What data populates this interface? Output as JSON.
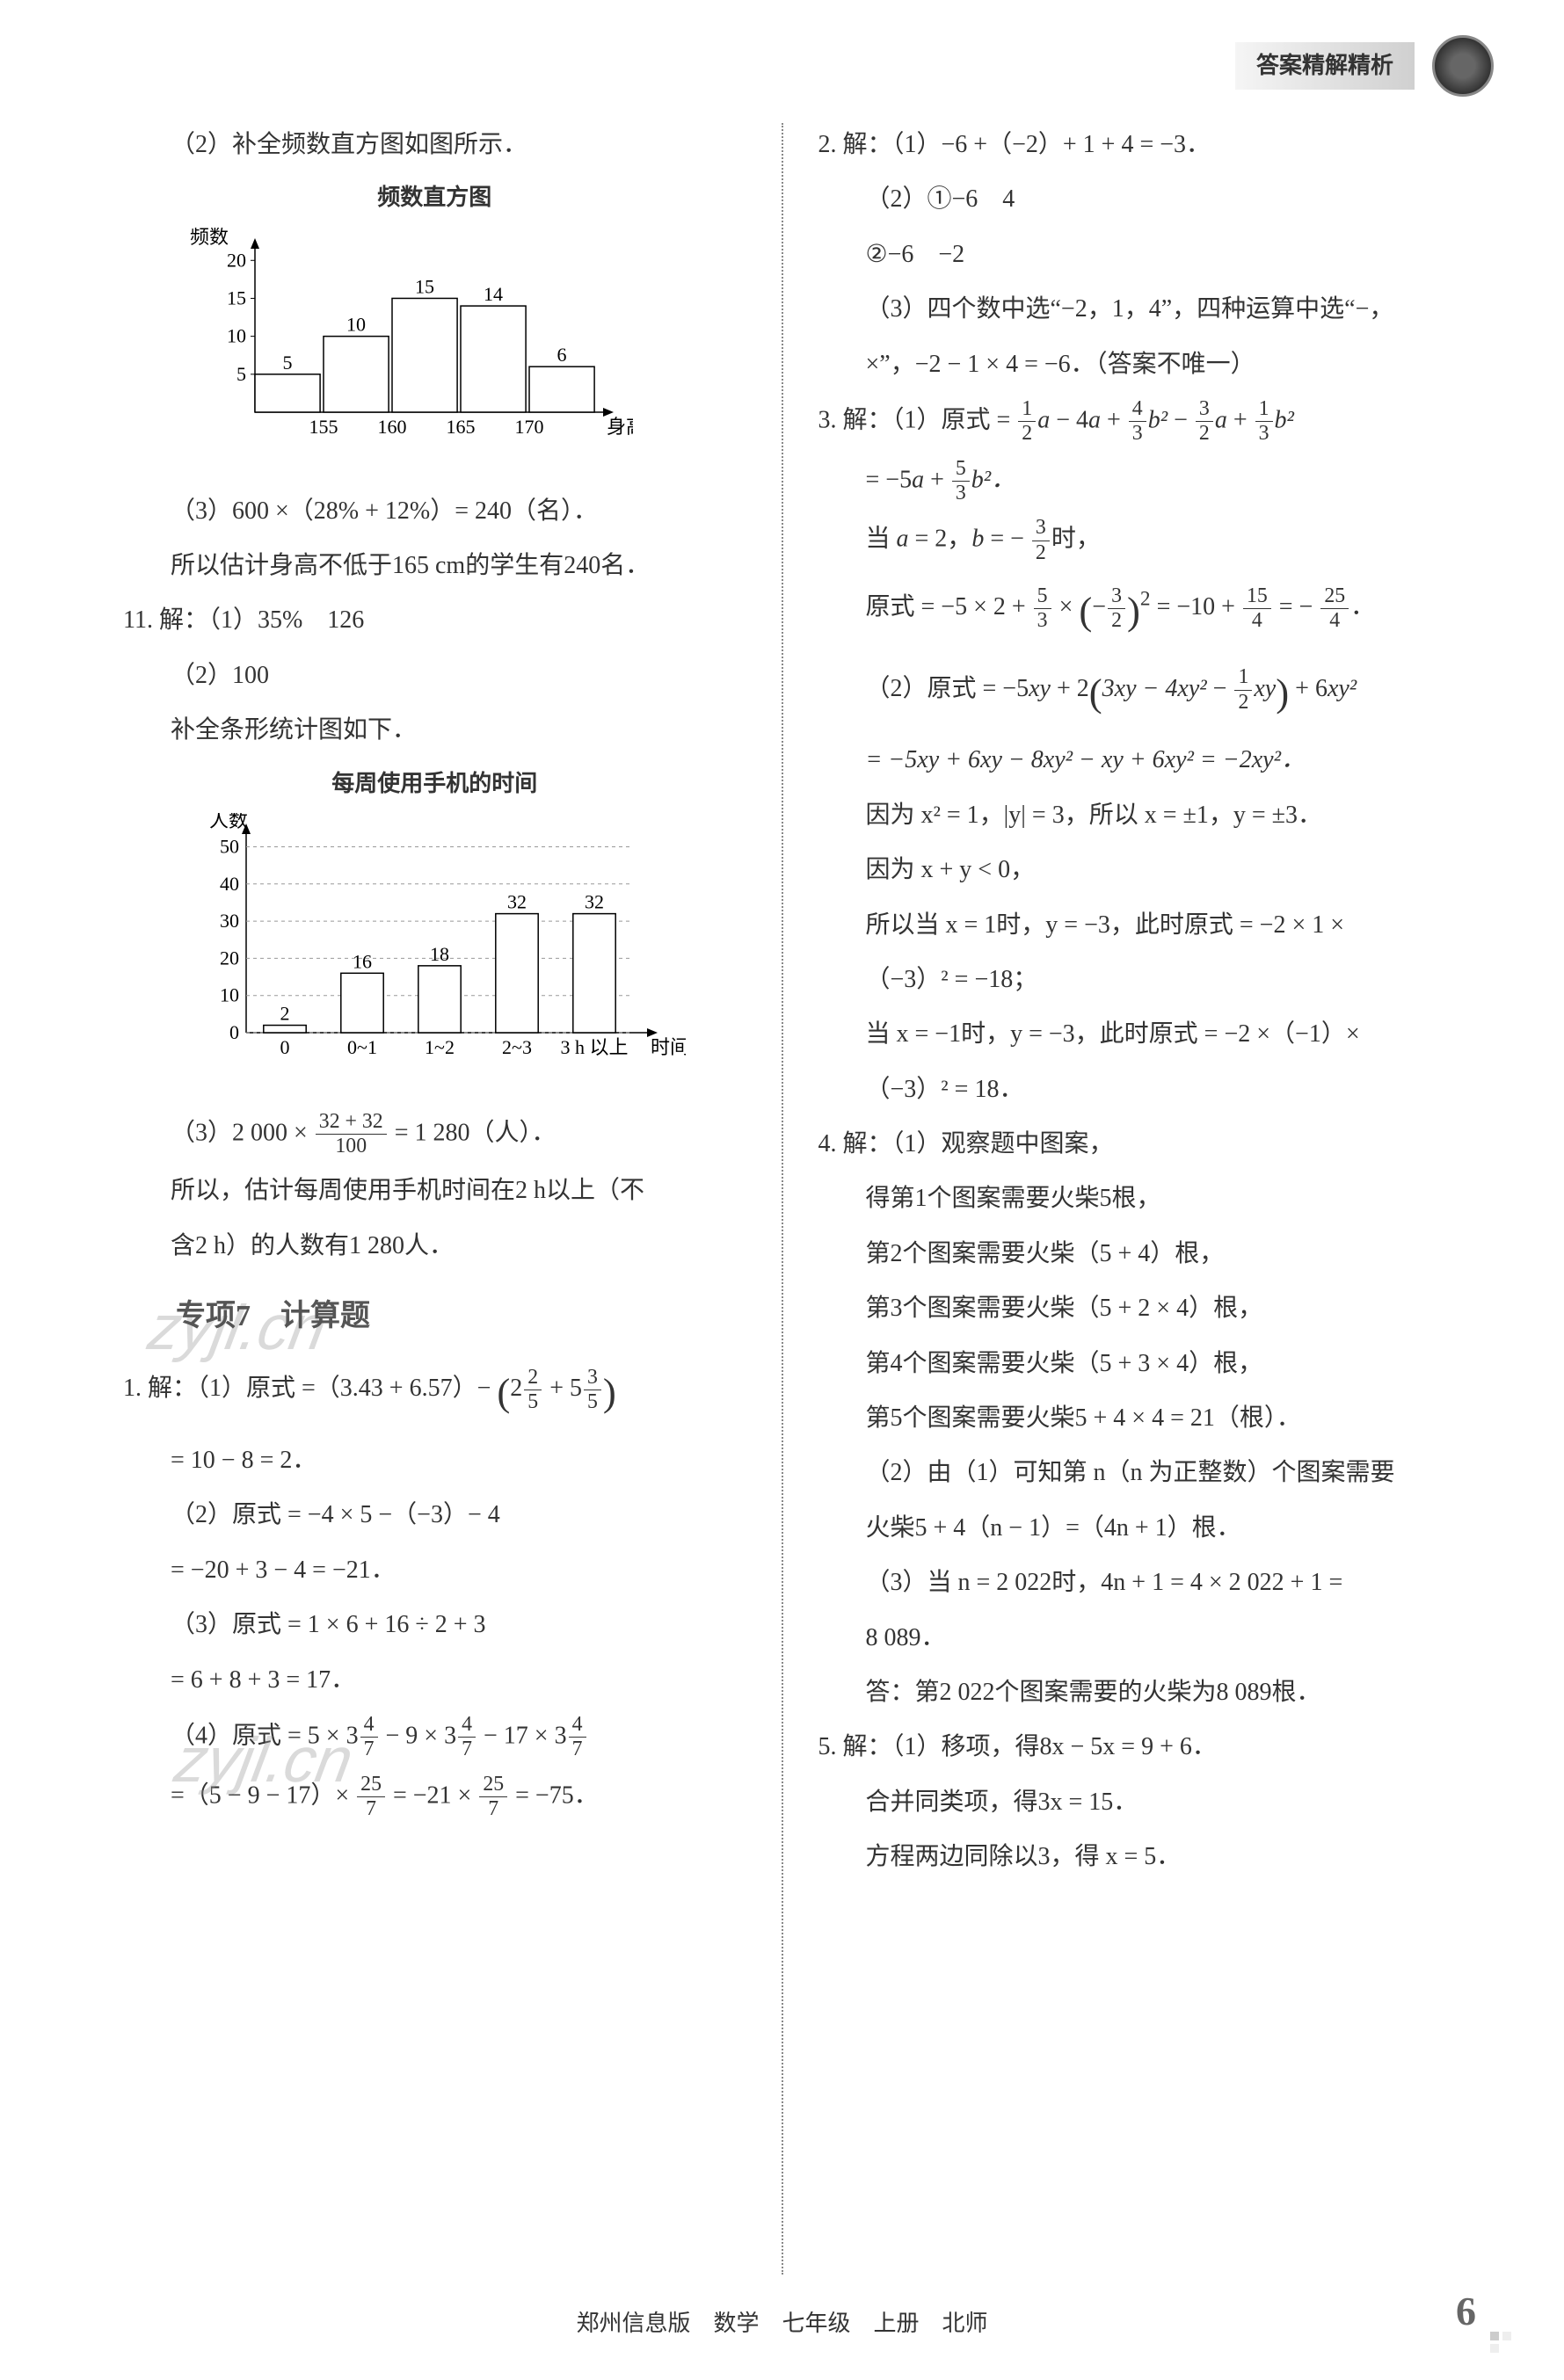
{
  "header": {
    "label": "答案精解精析"
  },
  "footer": {
    "text": "郑州信息版　数学　七年级　上册　北师",
    "page": "6"
  },
  "watermarks": [
    "zyjl.cn",
    "zyjl.cn"
  ],
  "left": {
    "p10_2": "（2）补全频数直方图如图所示．",
    "chart1": {
      "type": "bar",
      "title": "频数直方图",
      "ylabel": "频数",
      "xlabel": "身高/cm",
      "categories": [
        "155",
        "160",
        "165",
        "170"
      ],
      "values": [
        5,
        10,
        15,
        14,
        6
      ],
      "value_labels": [
        "5",
        "10",
        "15",
        "14",
        "6"
      ],
      "yticks": [
        5,
        10,
        15,
        20
      ],
      "ylim": [
        0,
        22
      ],
      "bar_color": "#ffffff",
      "bar_border": "#000000",
      "axis_color": "#000000",
      "label_fontsize": 22
    },
    "p10_3a": "（3）600 ×（28% + 12%）= 240（名）．",
    "p10_3b": "所以估计身高不低于165 cm的学生有240名．",
    "p11_head": "11. 解：（1）35%　126",
    "p11_2a": "（2）100",
    "p11_2b": "补全条形统计图如下．",
    "chart2": {
      "type": "bar",
      "title": "每周使用手机的时间",
      "ylabel": "人数",
      "xlabel": "时间/h",
      "categories": [
        "0",
        "0~1",
        "1~2",
        "2~3",
        "3 h 以上"
      ],
      "values": [
        2,
        16,
        18,
        32,
        32
      ],
      "value_labels": [
        "2",
        "16",
        "18",
        "32",
        "32"
      ],
      "yticks": [
        0,
        10,
        20,
        30,
        40,
        50
      ],
      "ylim": [
        0,
        52
      ],
      "bar_color": "#ffffff",
      "bar_border": "#000000",
      "axis_color": "#000000",
      "label_fontsize": 22,
      "dashed_ticks": true
    },
    "p11_3_formula": {
      "prefix": "（3）2 000 × ",
      "num": "32 + 32",
      "den": "100",
      "suffix": " = 1 280（人）．"
    },
    "p11_3b": "所以，估计每周使用手机时间在2 h以上（不",
    "p11_3c": "含2 h）的人数有1 280人．",
    "section7": "专项7　计算题",
    "q1_1": {
      "prefix": "1. 解：（1）原式 =（3.43 + 6.57）− ",
      "t1n": "2",
      "t1d": "5",
      "t1w": "2",
      "t2n": "3",
      "t2d": "5",
      "t2w": "5"
    },
    "q1_1b": "= 10 − 8 = 2．",
    "q1_2a": "（2）原式 = −4 × 5 −（−3）− 4",
    "q1_2b": "= −20 + 3 − 4 = −21．",
    "q1_3a": "（3）原式 = 1 × 6 + 16 ÷ 2 + 3",
    "q1_3b": "= 6 + 8 + 3 = 17．",
    "q1_4a": {
      "prefix": "（4）原式 = 5 × 3",
      "n": "4",
      "d": "7",
      "mid1": " − 9 × 3",
      "mid2": " − 17 × 3"
    },
    "q1_4b": {
      "prefix": "=（5 − 9 − 17）× ",
      "n1": "25",
      "d1": "7",
      "mid": " = −21 × ",
      "n2": "25",
      "d2": "7",
      "suffix": " = −75．"
    }
  },
  "right": {
    "q2_1": "2. 解：（1）−6 +（−2）+ 1 + 4 = −3．",
    "q2_2a": "（2）①−6　4",
    "q2_2b": "②−6　−2",
    "q2_3a": "（3）四个数中选“−2，1，4”，四种运算中选“−，",
    "q2_3b": "×”，−2 − 1 × 4 = −6．（答案不唯一）",
    "q3_1": {
      "prefix": "3. 解：（1）原式 = ",
      "t": [
        {
          "n": "1",
          "d": "2",
          "v": "a"
        },
        " − 4",
        "a",
        " + ",
        {
          "n": "4",
          "d": "3",
          "v": "b²"
        },
        " − ",
        {
          "n": "3",
          "d": "2",
          "v": "a"
        },
        " + ",
        {
          "n": "1",
          "d": "3",
          "v": "b²"
        }
      ]
    },
    "q3_1b": {
      "prefix": "= −5",
      "v": "a",
      "mid": " + ",
      "n": "5",
      "d": "3",
      "suf": "b²．"
    },
    "q3_1c": {
      "prefix": "当 ",
      "a": "a",
      "mid1": " = 2，",
      "b": "b",
      "mid2": " = − ",
      "n": "3",
      "d": "2",
      "suf": "时，"
    },
    "q3_1d": {
      "prefix": "原式 = −5 × 2 + ",
      "n1": "5",
      "d1": "3",
      "mid1": " × ",
      "pn": "3",
      "pd": "2",
      "exp": "2",
      "mid2": " = −10 + ",
      "n2": "15",
      "d2": "4",
      "mid3": " = − ",
      "n3": "25",
      "d3": "4",
      "suf": "．"
    },
    "q3_2a": {
      "prefix": "（2）原式 = −5",
      "v1": "xy",
      "mid1": " + 2",
      "lp": "(",
      "i1": "3xy − 4xy²",
      "mid2": " − ",
      "n": "1",
      "d": "2",
      "v2": "xy",
      "rp": ")",
      "mid3": " + 6",
      "v3": "xy²"
    },
    "q3_2b": "= −5xy + 6xy − 8xy² − xy + 6xy² = −2xy²．",
    "q3_2c": "因为 x² = 1，|y| = 3，所以 x = ±1，y = ±3．",
    "q3_2d": "因为 x + y < 0，",
    "q3_2e": "所以当 x = 1时，y = −3，此时原式 = −2 × 1 ×",
    "q3_2f": "（−3）² = −18；",
    "q3_2g": "当 x = −1时，y = −3，此时原式 = −2 ×（−1）×",
    "q3_2h": "（−3）² = 18．",
    "q4_1": "4. 解：（1）观察题中图案，",
    "q4_1a": "得第1个图案需要火柴5根，",
    "q4_1b": "第2个图案需要火柴（5 + 4）根，",
    "q4_1c": "第3个图案需要火柴（5 + 2 × 4）根，",
    "q4_1d": "第4个图案需要火柴（5 + 3 × 4）根，",
    "q4_1e": "第5个图案需要火柴5 + 4 × 4 = 21（根）．",
    "q4_2a": "（2）由（1）可知第 n（n 为正整数）个图案需要",
    "q4_2b": "火柴5 + 4（n − 1）=（4n + 1）根．",
    "q4_3a": "（3）当 n = 2 022时，4n + 1 = 4 × 2 022 + 1 =",
    "q4_3b": "8 089．",
    "q4_3c": "答：第2 022个图案需要的火柴为8 089根．",
    "q5_1a": "5. 解：（1）移项，得8x − 5x = 9 + 6．",
    "q5_1b": "合并同类项，得3x = 15．",
    "q5_1c": "方程两边同除以3，得 x = 5．"
  }
}
